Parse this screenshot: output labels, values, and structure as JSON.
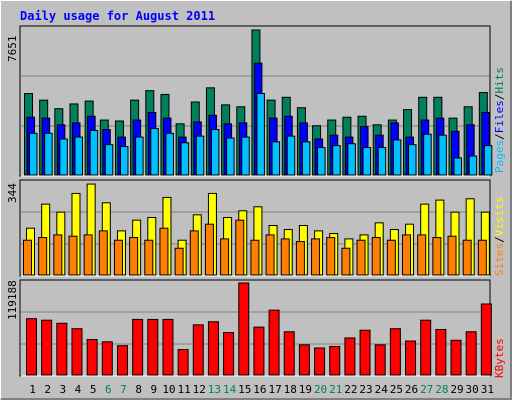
{
  "title": "Daily usage for August 2011",
  "colors": {
    "background": "#C0C0C0",
    "hits": "#00805C",
    "files": "#0000FF",
    "pages": "#00C0FF",
    "visits": "#FFFF00",
    "sites": "#FF8000",
    "kbytes": "#FF0000",
    "title_text": "#0000FF",
    "weekend_label": "#00805C",
    "weekday_label": "#000000"
  },
  "axis_max_labels": {
    "pages_files_hits": "7651",
    "sites_visits": "344",
    "kbytes": "119188"
  },
  "legend": {
    "pages": "Pages",
    "files": "Files",
    "hits": "Hits",
    "sites": "Sites",
    "visits": "Visits",
    "kbytes": "KBytes",
    "separator": "/"
  },
  "chart_data": [
    {
      "type": "bar",
      "name": "Pages / Files / Hits",
      "categories": [
        "1",
        "2",
        "3",
        "4",
        "5",
        "6",
        "7",
        "8",
        "9",
        "10",
        "11",
        "12",
        "13",
        "14",
        "15",
        "16",
        "17",
        "18",
        "19",
        "20",
        "21",
        "22",
        "23",
        "24",
        "25",
        "26",
        "27",
        "28",
        "29",
        "30",
        "31"
      ],
      "weekend_days": [
        "6",
        "7",
        "13",
        "14",
        "20",
        "21",
        "27",
        "28"
      ],
      "ylim": [
        0,
        7651
      ],
      "series": [
        {
          "name": "Hits",
          "values": [
            4300,
            3950,
            3500,
            3750,
            3900,
            2900,
            2850,
            3950,
            4450,
            4250,
            2700,
            3850,
            4600,
            3700,
            3600,
            7651,
            3950,
            4100,
            3550,
            2600,
            2900,
            3050,
            3100,
            2650,
            2900,
            3450,
            4100,
            4100,
            3000,
            3600,
            4350
          ]
        },
        {
          "name": "Files",
          "values": [
            3050,
            3000,
            2650,
            2750,
            3100,
            2400,
            2000,
            2900,
            3300,
            3000,
            2000,
            2800,
            3150,
            2700,
            2750,
            5900,
            3000,
            3100,
            2750,
            1900,
            2100,
            2000,
            2550,
            2100,
            2750,
            2000,
            2900,
            3000,
            2300,
            2650,
            3300
          ]
        },
        {
          "name": "Pages",
          "values": [
            2200,
            2200,
            1900,
            2000,
            2350,
            1600,
            1500,
            2000,
            2450,
            2200,
            1700,
            2050,
            2400,
            1950,
            2000,
            4300,
            1750,
            2050,
            1750,
            1450,
            1550,
            1650,
            1450,
            1450,
            1850,
            1600,
            2150,
            2100,
            900,
            1000,
            1550
          ]
        }
      ]
    },
    {
      "type": "bar",
      "name": "Sites / Visits",
      "categories": [
        "1",
        "2",
        "3",
        "4",
        "5",
        "6",
        "7",
        "8",
        "9",
        "10",
        "11",
        "12",
        "13",
        "14",
        "15",
        "16",
        "17",
        "18",
        "19",
        "20",
        "21",
        "22",
        "23",
        "24",
        "25",
        "26",
        "27",
        "28",
        "29",
        "30",
        "31"
      ],
      "weekend_days": [
        "6",
        "7",
        "13",
        "14",
        "20",
        "21",
        "27",
        "28"
      ],
      "ylim": [
        0,
        344
      ],
      "series": [
        {
          "name": "Visits",
          "values": [
            175,
            265,
            235,
            305,
            340,
            270,
            165,
            205,
            215,
            290,
            130,
            225,
            305,
            215,
            240,
            255,
            185,
            170,
            185,
            165,
            155,
            135,
            150,
            195,
            170,
            190,
            265,
            280,
            235,
            285,
            235
          ]
        },
        {
          "name": "Sites",
          "values": [
            130,
            140,
            150,
            145,
            150,
            165,
            130,
            140,
            130,
            175,
            100,
            165,
            190,
            135,
            205,
            130,
            150,
            135,
            125,
            135,
            140,
            100,
            130,
            140,
            130,
            150,
            150,
            140,
            145,
            130,
            130
          ]
        }
      ]
    },
    {
      "type": "bar",
      "name": "KBytes",
      "categories": [
        "1",
        "2",
        "3",
        "4",
        "5",
        "6",
        "7",
        "8",
        "9",
        "10",
        "11",
        "12",
        "13",
        "14",
        "15",
        "16",
        "17",
        "18",
        "19",
        "20",
        "21",
        "22",
        "23",
        "24",
        "25",
        "26",
        "27",
        "28",
        "29",
        "30",
        "31"
      ],
      "weekend_days": [
        "6",
        "7",
        "13",
        "14",
        "20",
        "21",
        "27",
        "28"
      ],
      "ylim": [
        0,
        119188
      ],
      "series": [
        {
          "name": "KBytes",
          "values": [
            73000,
            71000,
            67000,
            60000,
            46000,
            43000,
            38000,
            72000,
            72000,
            72000,
            33000,
            65000,
            69000,
            55000,
            119188,
            62000,
            84000,
            56000,
            39000,
            35000,
            37000,
            48000,
            58000,
            39000,
            60000,
            44000,
            71000,
            59000,
            45000,
            56000,
            92000
          ]
        }
      ]
    }
  ]
}
